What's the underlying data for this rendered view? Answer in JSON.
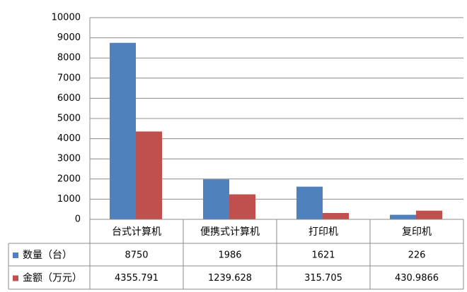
{
  "chart_data": {
    "type": "bar",
    "categories": [
      "台式计算机",
      "便携式计算机",
      "打印机",
      "复印机"
    ],
    "series": [
      {
        "name": "数量（台）",
        "color": "#4f81bd",
        "values": [
          8750,
          1986,
          1621,
          226
        ]
      },
      {
        "name": "金额（万元）",
        "color": "#c0504d",
        "values": [
          4355.791,
          1239.628,
          315.705,
          430.9866
        ]
      }
    ],
    "ylim": [
      0,
      10000
    ],
    "yticks": [
      0,
      1000,
      2000,
      3000,
      4000,
      5000,
      6000,
      7000,
      8000,
      9000,
      10000
    ],
    "grid": true,
    "data_table": true
  }
}
